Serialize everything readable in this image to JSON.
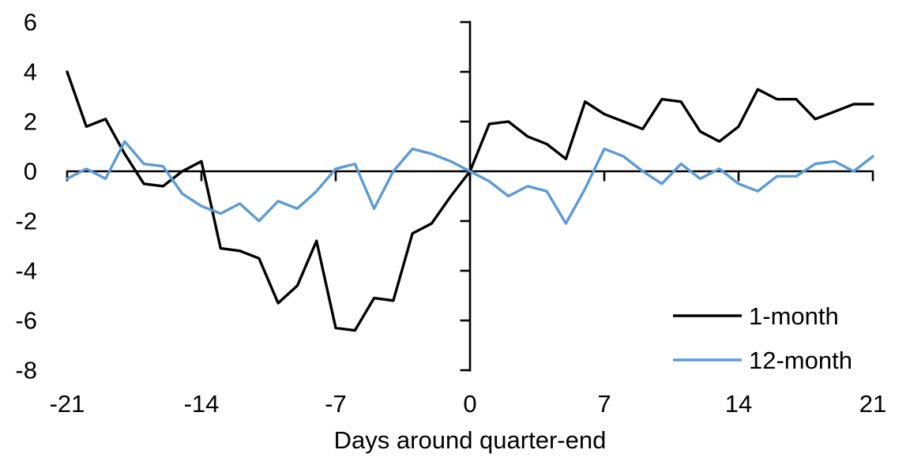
{
  "chart_data": {
    "type": "line",
    "title": "",
    "xlabel": "Days around quarter-end",
    "ylabel": "",
    "xlim": [
      -21,
      21
    ],
    "ylim": [
      -8,
      6
    ],
    "x_ticks": [
      -21,
      -14,
      -7,
      0,
      7,
      14,
      21
    ],
    "y_ticks": [
      6,
      4,
      2,
      0,
      -2,
      -4,
      -6,
      -8
    ],
    "grid": false,
    "legend_position": "lower-right",
    "background_color": "#ffffff",
    "axis_color": "#000000",
    "x": [
      -21,
      -20,
      -19,
      -18,
      -17,
      -16,
      -15,
      -14,
      -13,
      -12,
      -11,
      -10,
      -9,
      -8,
      -7,
      -6,
      -5,
      -4,
      -3,
      -2,
      -1,
      0,
      1,
      2,
      3,
      4,
      5,
      6,
      7,
      8,
      9,
      10,
      11,
      12,
      13,
      14,
      15,
      16,
      17,
      18,
      19,
      20,
      21
    ],
    "series": [
      {
        "name": "1-month",
        "color": "#000000",
        "values": [
          4.0,
          1.8,
          2.1,
          0.7,
          -0.5,
          -0.6,
          0.0,
          0.4,
          -3.1,
          -3.2,
          -3.5,
          -5.3,
          -4.6,
          -2.8,
          -6.3,
          -6.4,
          -5.1,
          -5.2,
          -2.5,
          -2.1,
          -1.0,
          0.0,
          1.9,
          2.0,
          1.4,
          1.1,
          0.5,
          2.8,
          2.3,
          2.0,
          1.7,
          2.9,
          2.8,
          1.6,
          1.2,
          1.8,
          3.3,
          2.9,
          2.9,
          2.1,
          2.4,
          2.7,
          2.7
        ]
      },
      {
        "name": "12-month",
        "color": "#5B9BD5",
        "values": [
          -0.3,
          0.1,
          -0.3,
          1.2,
          0.3,
          0.2,
          -0.9,
          -1.4,
          -1.7,
          -1.3,
          -2.0,
          -1.2,
          -1.5,
          -0.8,
          0.1,
          0.3,
          -1.5,
          0.0,
          0.9,
          0.7,
          0.4,
          0.0,
          -0.4,
          -1.0,
          -0.6,
          -0.8,
          -2.1,
          -0.7,
          0.9,
          0.6,
          0.0,
          -0.5,
          0.3,
          -0.3,
          0.1,
          -0.5,
          -0.8,
          -0.2,
          -0.2,
          0.3,
          0.4,
          0.0,
          0.6
        ]
      }
    ]
  }
}
